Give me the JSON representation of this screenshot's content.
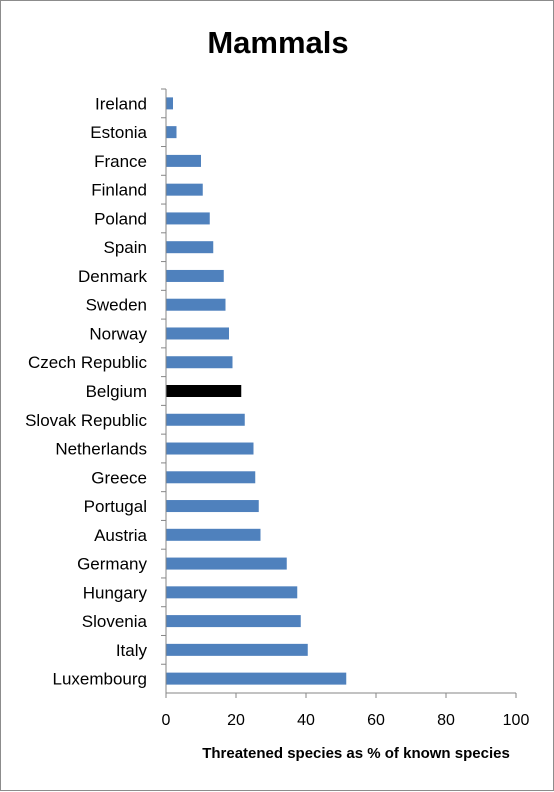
{
  "chart_data": {
    "type": "bar",
    "orientation": "horizontal",
    "title": "Mammals",
    "xlabel": "Threatened species as % of known species",
    "ylabel": "",
    "xlim": [
      0,
      100
    ],
    "ticks": [
      0,
      20,
      40,
      60,
      80,
      100
    ],
    "grid": false,
    "legend": "none",
    "categories": [
      "Ireland",
      "Estonia",
      "France",
      "Finland",
      "Poland",
      "Spain",
      "Denmark",
      "Sweden",
      "Norway",
      "Czech Republic",
      "Belgium",
      "Slovak Republic",
      "Netherlands",
      "Greece",
      "Portugal",
      "Austria",
      "Germany",
      "Hungary",
      "Slovenia",
      "Italy",
      "Luxembourg"
    ],
    "values": [
      2,
      3,
      10,
      10.5,
      12.5,
      13.5,
      16.5,
      17,
      18,
      19,
      21.5,
      22.5,
      25,
      25.5,
      26.5,
      27,
      34.5,
      37.5,
      38.5,
      40.5,
      51.5
    ],
    "highlight": "Belgium",
    "colors": {
      "bar": "#4f81bd",
      "highlight": "#000000",
      "axis": "#868686"
    }
  }
}
